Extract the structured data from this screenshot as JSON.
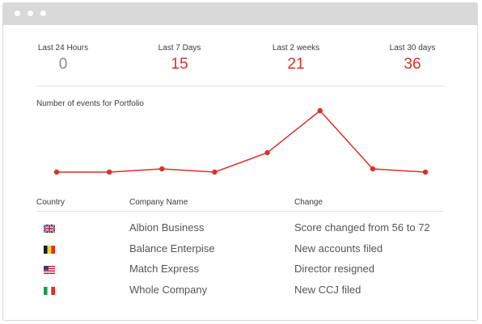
{
  "stats": [
    {
      "label": "Last 24 Hours",
      "value": "0",
      "color": "#8a8a8a"
    },
    {
      "label": "Last 7 Days",
      "value": "15",
      "color": "#d8312a"
    },
    {
      "label": "Last 2 weeks",
      "value": "21",
      "color": "#d8312a"
    },
    {
      "label": "Last 30 days",
      "value": "36",
      "color": "#d8312a"
    }
  ],
  "chart_data": {
    "type": "line",
    "title": "Number of events for Portfolio",
    "xlabel": "",
    "ylabel": "",
    "x": [
      1,
      2,
      3,
      4,
      5,
      6,
      7,
      8
    ],
    "series": [
      {
        "values": [
          1,
          1,
          2,
          1,
          7,
          20,
          2,
          1
        ]
      }
    ],
    "ylim": [
      0,
      20
    ],
    "grid": false,
    "color": "#d8312a"
  },
  "table": {
    "headers": {
      "country": "Country",
      "company": "Company Name",
      "change": "Change"
    },
    "rows": [
      {
        "flag": "uk-flag-icon",
        "company": "Albion Business",
        "change": "Score changed from 56 to 72"
      },
      {
        "flag": "belgium-flag-icon",
        "company": "Balance Enterpise",
        "change": "New accounts filed"
      },
      {
        "flag": "us-flag-icon",
        "company": "Match Express",
        "change": "Director resigned"
      },
      {
        "flag": "italy-flag-icon",
        "company": "Whole Company",
        "change": "New CCJ filed"
      }
    ]
  }
}
